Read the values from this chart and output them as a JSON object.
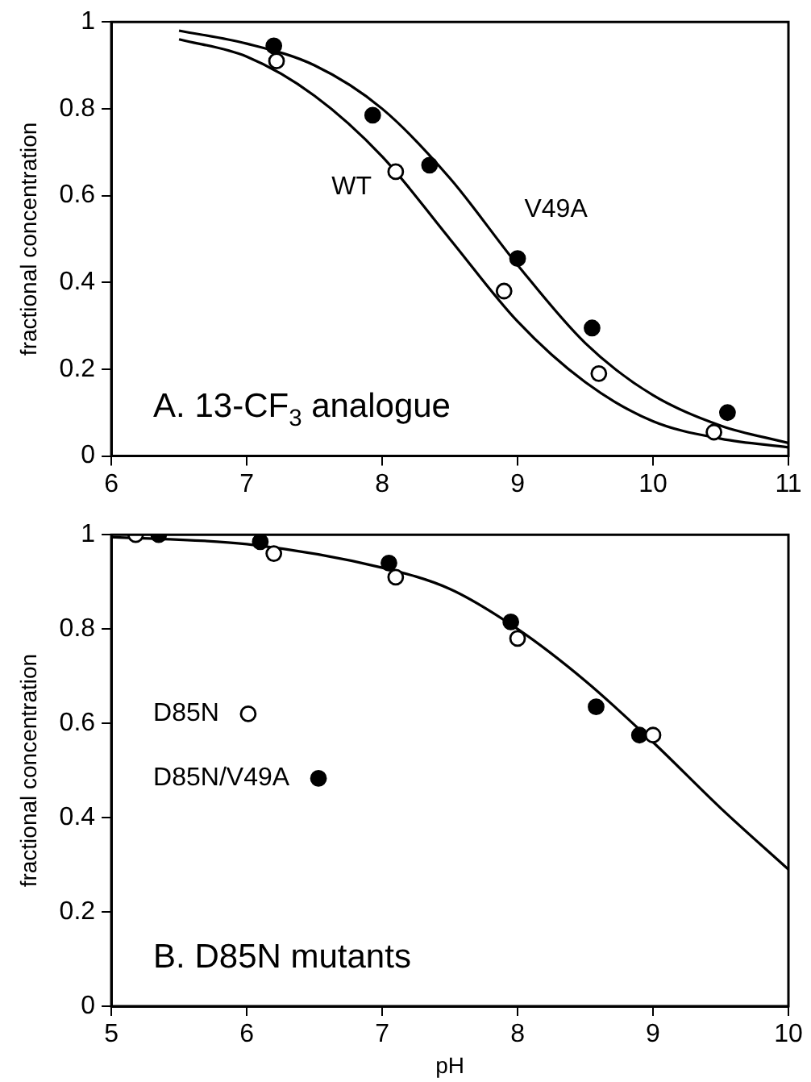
{
  "chart_data": [
    {
      "type": "scatter",
      "ylabel": "fractional concentration",
      "xlim": [
        6,
        11
      ],
      "xticks": [
        6,
        7,
        8,
        9,
        10,
        11
      ],
      "ylim": [
        0,
        1
      ],
      "yticks": [
        0,
        0.2,
        0.4,
        0.6,
        0.8,
        1
      ],
      "grid": false,
      "marker": "circle",
      "annotations": [
        "A. 13-CF$_{3}$ analogue"
      ],
      "series": [
        {
          "name": "WT",
          "type": "line",
          "marker": "none",
          "color": "#000000",
          "x": [
            6.5,
            7,
            7.5,
            8,
            8.5,
            9,
            9.5,
            10,
            10.5,
            11
          ],
          "values": [
            0.96,
            0.92,
            0.83,
            0.69,
            0.5,
            0.31,
            0.17,
            0.08,
            0.04,
            0.02
          ]
        },
        {
          "name": "V49A",
          "type": "line",
          "marker": "none",
          "color": "#000000",
          "x": [
            6.5,
            7,
            7.5,
            8,
            8.5,
            9,
            9.5,
            10,
            10.5,
            11
          ],
          "values": [
            0.98,
            0.95,
            0.9,
            0.8,
            0.64,
            0.44,
            0.26,
            0.14,
            0.07,
            0.03
          ]
        },
        {
          "color": "#ffffff",
          "x": [
            7.22,
            8.1,
            8.9,
            9.6,
            10.45
          ],
          "values": [
            0.91,
            0.655,
            0.38,
            0.19,
            0.055
          ]
        },
        {
          "color": "#000000",
          "x": [
            7.2,
            7.93,
            8.35,
            9.0,
            9.55,
            10.55
          ],
          "values": [
            0.945,
            0.785,
            0.67,
            0.455,
            0.295,
            0.1
          ]
        }
      ]
    },
    {
      "type": "scatter",
      "xlabel": "pH",
      "ylabel": "fractional concentration",
      "xlim": [
        5,
        10
      ],
      "xticks": [
        5,
        6,
        7,
        8,
        9,
        10
      ],
      "ylim": [
        0,
        1
      ],
      "yticks": [
        0,
        0.2,
        0.4,
        0.6,
        0.8,
        1
      ],
      "grid": false,
      "marker": "circle",
      "legend": "left",
      "annotations": [
        "B. D85N mutants"
      ],
      "series": [
        {
          "type": "line",
          "marker": "none",
          "color": "#000000",
          "x": [
            5,
            6,
            7,
            7.5,
            8,
            8.5,
            9,
            9.5,
            10
          ],
          "values": [
            0.995,
            0.98,
            0.93,
            0.885,
            0.8,
            0.69,
            0.56,
            0.42,
            0.29
          ]
        },
        {
          "name": "D85N",
          "color": "#ffffff",
          "x": [
            5.18,
            6.2,
            7.1,
            8.0,
            9.0
          ],
          "values": [
            1.0,
            0.96,
            0.91,
            0.78,
            0.575
          ]
        },
        {
          "name": "D85N/V49A",
          "color": "#000000",
          "x": [
            5.35,
            6.1,
            7.05,
            7.95,
            8.58,
            8.9
          ],
          "values": [
            1.0,
            0.985,
            0.94,
            0.815,
            0.635,
            0.575
          ]
        }
      ]
    }
  ]
}
